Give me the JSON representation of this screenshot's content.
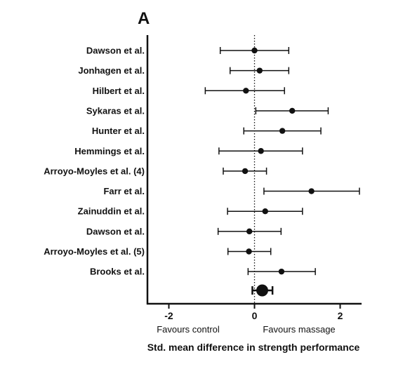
{
  "panel_label": "A",
  "chart_data": {
    "type": "forest",
    "title": "",
    "xlabel": "Std. mean difference in strength performance",
    "xlim": [
      -2.5,
      2.5
    ],
    "xticks": [
      {
        "value": -2,
        "label": "-2"
      },
      {
        "value": 0,
        "label": "0"
      },
      {
        "value": 2,
        "label": "2"
      }
    ],
    "reference_line": 0,
    "favours_left": "Favours control",
    "favours_right": "Favours massage",
    "studies": [
      {
        "label": "Dawson et al.",
        "estimate": 0.0,
        "lower": -0.8,
        "upper": 0.8
      },
      {
        "label": "Jonhagen et al.",
        "estimate": 0.12,
        "lower": -0.57,
        "upper": 0.8
      },
      {
        "label": "Hilbert et al.",
        "estimate": -0.2,
        "lower": -1.15,
        "upper": 0.7
      },
      {
        "label": "Sykaras et al.",
        "estimate": 0.88,
        "lower": 0.03,
        "upper": 1.72
      },
      {
        "label": "Hunter et al.",
        "estimate": 0.65,
        "lower": -0.25,
        "upper": 1.55
      },
      {
        "label": "Hemmings et al.",
        "estimate": 0.15,
        "lower": -0.83,
        "upper": 1.12
      },
      {
        "label": "Arroyo-Moyles et al. (4)",
        "estimate": -0.22,
        "lower": -0.73,
        "upper": 0.28
      },
      {
        "label": "Farr et al.",
        "estimate": 1.33,
        "lower": 0.22,
        "upper": 2.45
      },
      {
        "label": "Zainuddin et al.",
        "estimate": 0.25,
        "lower": -0.63,
        "upper": 1.12
      },
      {
        "label": "Dawson et al.",
        "estimate": -0.12,
        "lower": -0.85,
        "upper": 0.62
      },
      {
        "label": "Arroyo-Moyles et al. (5)",
        "estimate": -0.13,
        "lower": -0.62,
        "upper": 0.38
      },
      {
        "label": "Brooks et al.",
        "estimate": 0.63,
        "lower": -0.15,
        "upper": 1.42
      }
    ],
    "pooled": {
      "estimate": 0.18,
      "lower": -0.05,
      "upper": 0.42
    }
  }
}
